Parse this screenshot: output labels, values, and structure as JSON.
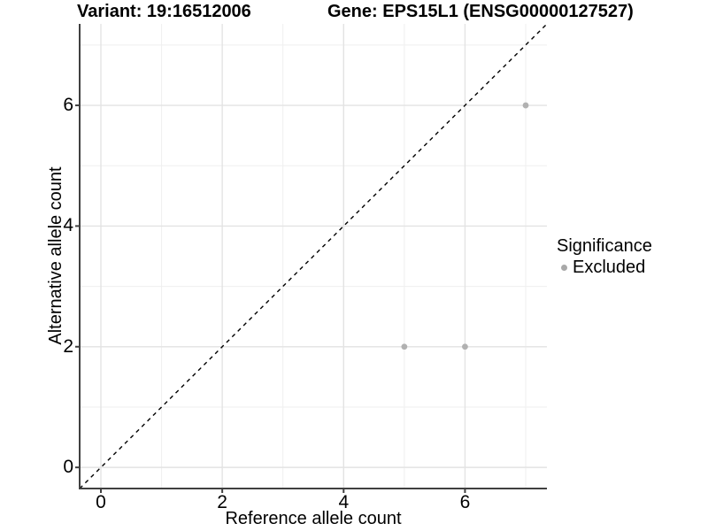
{
  "chart_data": {
    "type": "scatter",
    "title_left": "Variant: 19:16512006",
    "title_right": "Gene: EPS15L1 (ENSG00000127527)",
    "xlabel": "Reference allele count",
    "ylabel": "Alternative allele count",
    "xlim": [
      -0.35,
      7.35
    ],
    "ylim": [
      -0.35,
      7.35
    ],
    "x_major_ticks": [
      0,
      2,
      4,
      6
    ],
    "y_major_ticks": [
      0,
      2,
      4,
      6
    ],
    "x_minor_gridlines": [
      1,
      3,
      5,
      7
    ],
    "y_minor_gridlines": [
      1,
      3,
      5,
      7
    ],
    "grid": true,
    "reference_line": {
      "equation": "y = x",
      "style": "dashed",
      "from": [
        -0.35,
        -0.35
      ],
      "to": [
        7.35,
        7.35
      ],
      "color": "#000000"
    },
    "series": [
      {
        "name": "Excluded",
        "color": "#b1b1b1",
        "points": [
          [
            5,
            2
          ],
          [
            6,
            2
          ],
          [
            7,
            6
          ]
        ]
      }
    ],
    "legend": {
      "title": "Significance",
      "position": "right",
      "items": [
        {
          "label": "Excluded",
          "color": "#a9a9a9"
        }
      ]
    },
    "colors": {
      "background": "#ffffff",
      "major_grid": "#e3e3e3",
      "minor_grid": "#efefef",
      "axis_line": "#404040",
      "text": "#000000"
    }
  }
}
